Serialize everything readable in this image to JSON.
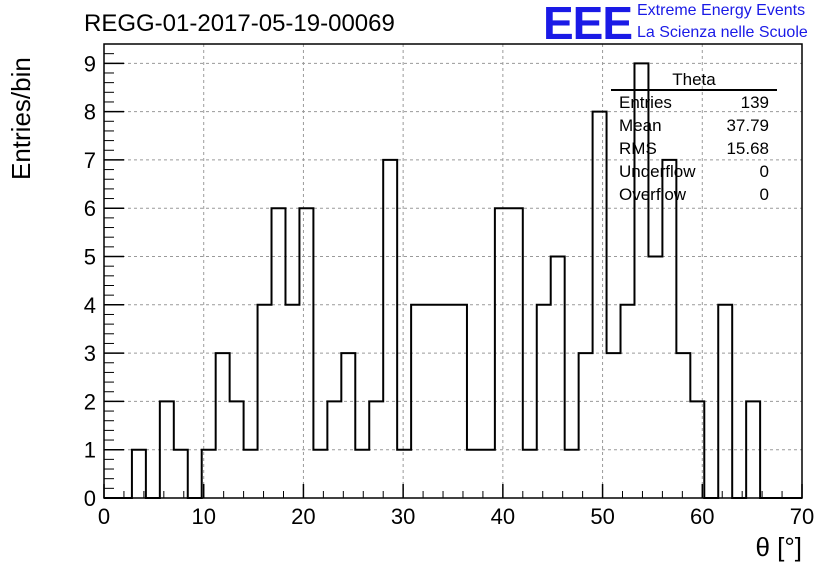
{
  "header": {
    "run_title": "REGG-01-2017-05-19-00069",
    "logo_text": "EEE",
    "logo_line1": "Extreme Energy Events",
    "logo_line2": "La Scienza nelle Scuole",
    "logo_color": "#1a1ae6"
  },
  "stats": {
    "title": "Theta",
    "rows": [
      {
        "label": "Entries",
        "value": "139"
      },
      {
        "label": "Mean",
        "value": "37.79"
      },
      {
        "label": "RMS",
        "value": "15.68"
      },
      {
        "label": "Underflow",
        "value": "0"
      },
      {
        "label": "Overflow",
        "value": "0"
      }
    ]
  },
  "chart_data": {
    "type": "bar",
    "subtype": "step-histogram",
    "xlabel": "θ [°]",
    "ylabel": "Entries/bin",
    "xlim": [
      0,
      70
    ],
    "ylim": [
      0,
      9.4
    ],
    "grid": true,
    "x_ticks": [
      0,
      10,
      20,
      30,
      40,
      50,
      60,
      70
    ],
    "y_ticks": [
      0,
      1,
      2,
      3,
      4,
      5,
      6,
      7,
      8,
      9
    ],
    "bin_width": 1.4,
    "bin_edges_start": 0,
    "values": [
      0,
      0,
      1,
      0,
      2,
      1,
      0,
      1,
      3,
      2,
      1,
      4,
      6,
      4,
      6,
      1,
      2,
      3,
      1,
      2,
      7,
      1,
      4,
      4,
      4,
      4,
      1,
      1,
      6,
      6,
      1,
      4,
      5,
      1,
      3,
      8,
      3,
      4,
      9,
      5,
      7,
      3,
      2,
      0,
      4,
      0,
      2,
      0,
      0,
      0
    ]
  }
}
